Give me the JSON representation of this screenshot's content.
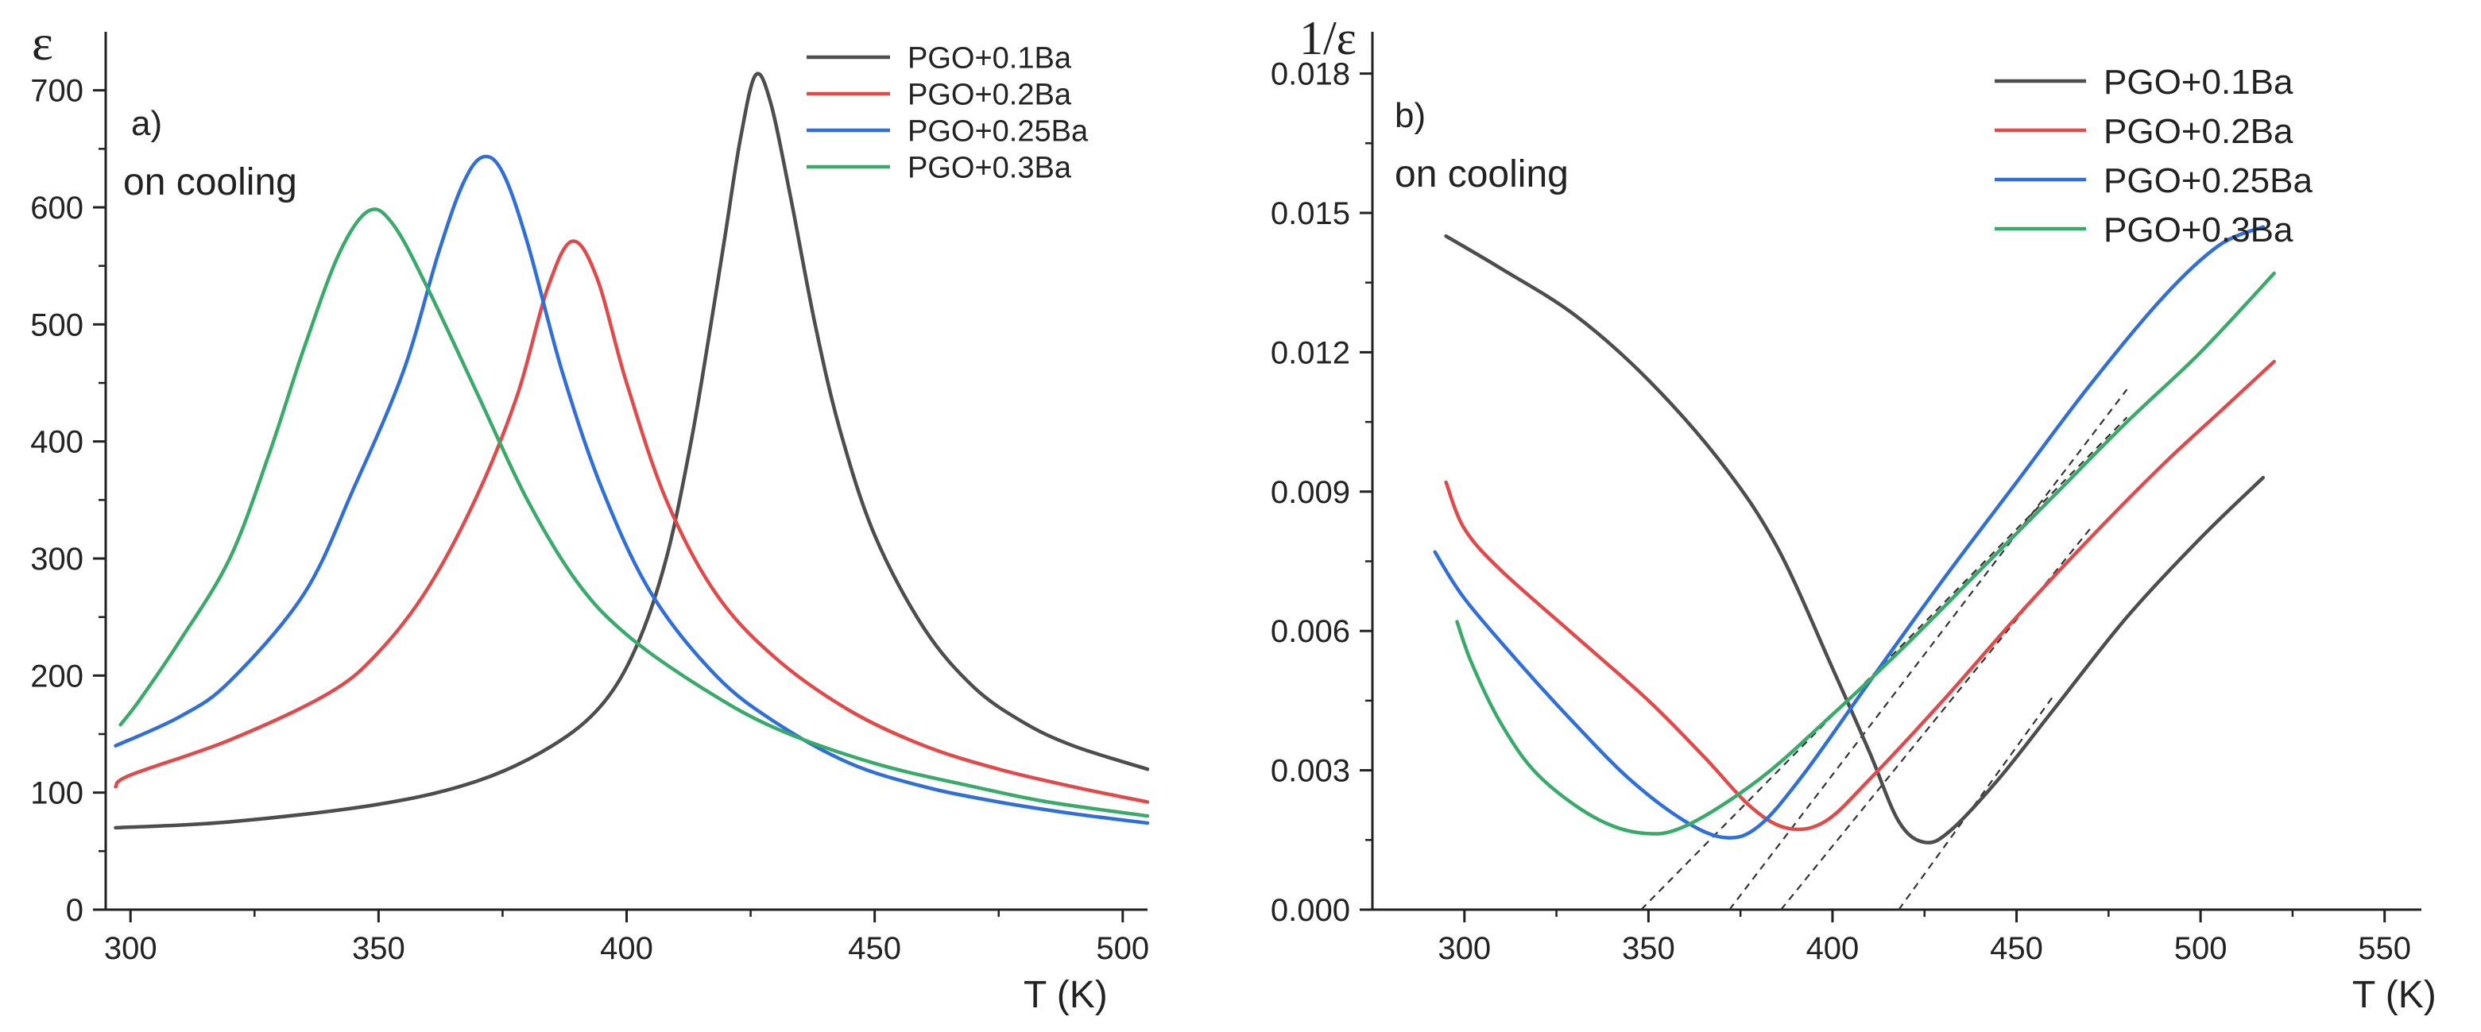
{
  "chart_data": [
    {
      "type": "line",
      "panel_label": "a)",
      "annotation": "on cooling",
      "ylabel": "ε",
      "xlabel": "T (K)",
      "xlim": [
        295,
        505
      ],
      "ylim": [
        0,
        750
      ],
      "xticks": [
        300,
        350,
        400,
        450,
        500
      ],
      "xtick_labels": [
        "300",
        "350",
        "400",
        "450",
        "500"
      ],
      "yticks": [
        0,
        100,
        200,
        300,
        400,
        500,
        600,
        700
      ],
      "ytick_labels": [
        "0",
        "100",
        "200",
        "300",
        "400",
        "500",
        "600",
        "700"
      ],
      "legend_position": "top-right",
      "series": [
        {
          "name": "PGO+0.1Ba",
          "color": "#4d4d4d",
          "points": [
            [
              297,
              70
            ],
            [
              320,
              75
            ],
            [
              350,
              90
            ],
            [
              370,
              110
            ],
            [
              385,
              140
            ],
            [
              395,
              175
            ],
            [
              402,
              225
            ],
            [
              408,
              300
            ],
            [
              413,
              400
            ],
            [
              417,
              500
            ],
            [
              420,
              580
            ],
            [
              423,
              660
            ],
            [
              426,
              713
            ],
            [
              429,
              690
            ],
            [
              433,
              610
            ],
            [
              438,
              500
            ],
            [
              443,
              410
            ],
            [
              450,
              320
            ],
            [
              460,
              240
            ],
            [
              470,
              190
            ],
            [
              480,
              160
            ],
            [
              490,
              140
            ],
            [
              505,
              120
            ]
          ]
        },
        {
          "name": "PGO+0.2Ba",
          "color": "#e04a4a",
          "points": [
            [
              297,
              105
            ],
            [
              300,
              115
            ],
            [
              320,
              145
            ],
            [
              340,
              185
            ],
            [
              350,
              220
            ],
            [
              360,
              275
            ],
            [
              370,
              355
            ],
            [
              378,
              440
            ],
            [
              384,
              530
            ],
            [
              389,
              571
            ],
            [
              394,
              540
            ],
            [
              400,
              450
            ],
            [
              408,
              350
            ],
            [
              418,
              270
            ],
            [
              430,
              215
            ],
            [
              445,
              170
            ],
            [
              460,
              140
            ],
            [
              475,
              120
            ],
            [
              490,
              105
            ],
            [
              505,
              92
            ]
          ]
        },
        {
          "name": "PGO+0.25Ba",
          "color": "#2f6fd6",
          "points": [
            [
              297,
              140
            ],
            [
              310,
              165
            ],
            [
              320,
              195
            ],
            [
              335,
              270
            ],
            [
              345,
              360
            ],
            [
              355,
              460
            ],
            [
              362,
              560
            ],
            [
              367,
              620
            ],
            [
              371,
              643
            ],
            [
              375,
              630
            ],
            [
              380,
              570
            ],
            [
              387,
              460
            ],
            [
              395,
              360
            ],
            [
              405,
              270
            ],
            [
              418,
              200
            ],
            [
              430,
              160
            ],
            [
              445,
              125
            ],
            [
              460,
              105
            ],
            [
              475,
              92
            ],
            [
              490,
              82
            ],
            [
              505,
              74
            ]
          ]
        },
        {
          "name": "PGO+0.3Ba",
          "color": "#3aaa6a",
          "points": [
            [
              298,
              158
            ],
            [
              302,
              180
            ],
            [
              310,
              230
            ],
            [
              320,
              300
            ],
            [
              328,
              390
            ],
            [
              335,
              480
            ],
            [
              342,
              560
            ],
            [
              348,
              597
            ],
            [
              353,
              585
            ],
            [
              360,
              530
            ],
            [
              370,
              440
            ],
            [
              380,
              350
            ],
            [
              390,
              280
            ],
            [
              400,
              235
            ],
            [
              415,
              190
            ],
            [
              430,
              155
            ],
            [
              450,
              125
            ],
            [
              470,
              105
            ],
            [
              485,
              92
            ],
            [
              505,
              80
            ]
          ]
        }
      ]
    },
    {
      "type": "line",
      "panel_label": "b)",
      "annotation": "on cooling",
      "ylabel": "1/ε",
      "xlabel": "T (K)",
      "xlim": [
        275,
        560
      ],
      "ylim": [
        0,
        0.0189
      ],
      "xticks": [
        300,
        350,
        400,
        450,
        500,
        550
      ],
      "xtick_labels": [
        "300",
        "350",
        "400",
        "450",
        "500",
        "550"
      ],
      "yticks": [
        0,
        0.003,
        0.006,
        0.009,
        0.012,
        0.015,
        0.018
      ],
      "ytick_labels": [
        "0.000",
        "0.003",
        "0.006",
        "0.009",
        "0.012",
        "0.015",
        "0.018"
      ],
      "legend_position": "top-right",
      "series": [
        {
          "name": "PGO+0.1Ba",
          "color": "#4d4d4d",
          "points": [
            [
              295,
              0.0145
            ],
            [
              310,
              0.0138
            ],
            [
              330,
              0.0128
            ],
            [
              350,
              0.0114
            ],
            [
              370,
              0.0096
            ],
            [
              385,
              0.0078
            ],
            [
              400,
              0.0052
            ],
            [
              410,
              0.0034
            ],
            [
              418,
              0.0019
            ],
            [
              425,
              0.00145
            ],
            [
              432,
              0.0017
            ],
            [
              445,
              0.0028
            ],
            [
              460,
              0.0043
            ],
            [
              480,
              0.0063
            ],
            [
              500,
              0.008
            ],
            [
              517,
              0.0093
            ]
          ]
        },
        {
          "name": "PGO+0.2Ba",
          "color": "#e04a4a",
          "points": [
            [
              295,
              0.0092
            ],
            [
              300,
              0.0082
            ],
            [
              310,
              0.0073
            ],
            [
              330,
              0.0059
            ],
            [
              350,
              0.0045
            ],
            [
              365,
              0.0033
            ],
            [
              378,
              0.0022
            ],
            [
              388,
              0.00175
            ],
            [
              398,
              0.0019
            ],
            [
              410,
              0.0028
            ],
            [
              430,
              0.0045
            ],
            [
              450,
              0.0063
            ],
            [
              470,
              0.008
            ],
            [
              490,
              0.0096
            ],
            [
              505,
              0.0107
            ],
            [
              520,
              0.0118
            ]
          ]
        },
        {
          "name": "PGO+0.25Ba",
          "color": "#2f6fd6",
          "points": [
            [
              292,
              0.0077
            ],
            [
              300,
              0.0067
            ],
            [
              315,
              0.0053
            ],
            [
              330,
              0.004
            ],
            [
              345,
              0.0028
            ],
            [
              360,
              0.0019
            ],
            [
              371,
              0.00155
            ],
            [
              380,
              0.0018
            ],
            [
              392,
              0.0029
            ],
            [
              410,
              0.0049
            ],
            [
              430,
              0.0071
            ],
            [
              450,
              0.0092
            ],
            [
              470,
              0.0113
            ],
            [
              490,
              0.0132
            ],
            [
              505,
              0.0143
            ],
            [
              517,
              0.0147
            ]
          ]
        },
        {
          "name": "PGO+0.3Ba",
          "color": "#3aaa6a",
          "points": [
            [
              298,
              0.0062
            ],
            [
              302,
              0.0053
            ],
            [
              310,
              0.004
            ],
            [
              320,
              0.0029
            ],
            [
              335,
              0.002
            ],
            [
              348,
              0.00165
            ],
            [
              360,
              0.0018
            ],
            [
              380,
              0.0028
            ],
            [
              400,
              0.0042
            ],
            [
              420,
              0.0057
            ],
            [
              440,
              0.0073
            ],
            [
              460,
              0.0089
            ],
            [
              480,
              0.0105
            ],
            [
              500,
              0.012
            ],
            [
              520,
              0.0137
            ]
          ]
        }
      ],
      "guide_lines": [
        {
          "x0": 348,
          "x1": 480,
          "y1": 0.0106
        },
        {
          "x0": 372,
          "x1": 480,
          "y1": 0.0112
        },
        {
          "x0": 386,
          "x1": 470,
          "y1": 0.0082
        },
        {
          "x0": 418,
          "x1": 460,
          "y1": 0.0046
        }
      ]
    }
  ]
}
